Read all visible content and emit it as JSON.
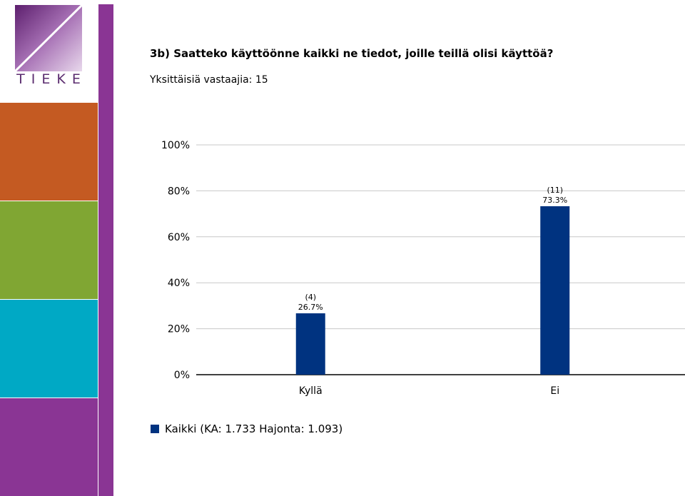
{
  "brand": {
    "name": "TIEKE"
  },
  "colors": {
    "orange": "#c45a22",
    "green": "#80a633",
    "cyan": "#00a9c5",
    "purple": "#8a3594",
    "bar": "#003380"
  },
  "chart_data": {
    "type": "bar",
    "title": "3b) Saatteko käyttöönne kaikki ne tiedot, joille teillä olisi käyttöä?",
    "subtitle": "Yksittäisiä vastaajia: 15",
    "categories": [
      "Kyllä",
      "Ei"
    ],
    "series": [
      {
        "name": "Kaikki (KA: 1.733 Hajonta: 1.093)",
        "values": [
          26.7,
          73.3
        ],
        "counts": [
          4,
          11
        ],
        "labels": [
          "26.7%",
          "73.3%"
        ],
        "count_labels": [
          "(4)",
          "(11)"
        ]
      }
    ],
    "yticks": [
      "0%",
      "20%",
      "40%",
      "60%",
      "80%",
      "100%"
    ],
    "ylim": [
      0,
      100
    ],
    "grid": true,
    "legend": "bottom-left"
  }
}
